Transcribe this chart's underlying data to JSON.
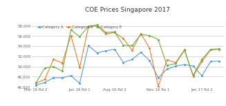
{
  "title": "COE Prices Singapore 2017",
  "background_color": "#ffffff",
  "grid_color": "#cccccc",
  "x_labels": [
    "Mar 16 Rd 2",
    "Jun 16 Rd 1",
    "Aug 16 Rd 2",
    "Nov 16 Ro 1",
    "Jan 17 Rd 2"
  ],
  "x_tick_positions": [
    0,
    5,
    9,
    14,
    19
  ],
  "ylim": [
    46000,
    58500
  ],
  "yticks": [
    46000,
    48000,
    50000,
    52000,
    54000,
    56000,
    58000
  ],
  "series": {
    "Category A": {
      "color": "#5b9bd5",
      "marker": "o",
      "values": [
        46300,
        46900,
        47800,
        47800,
        48200,
        46700,
        54100,
        52700,
        53100,
        53400,
        50800,
        51400,
        52800,
        51200,
        47800,
        49500,
        50100,
        50400,
        50100,
        48200,
        51000,
        51100
      ]
    },
    "Category B": {
      "color": "#ed7d31",
      "marker": "o",
      "values": [
        46700,
        47500,
        51400,
        50700,
        56100,
        49800,
        57800,
        58000,
        56400,
        56700,
        55500,
        53200,
        56500,
        53600,
        46100,
        51300,
        50800,
        53300,
        48100,
        51000,
        53300,
        53400
      ]
    },
    "Category E": {
      "color": "#70ad47",
      "marker": "o",
      "values": [
        46800,
        49700,
        50000,
        49100,
        57200,
        55900,
        57900,
        58200,
        56700,
        56800,
        54200,
        54100,
        56300,
        56100,
        55300,
        50200,
        50600,
        53200,
        48300,
        51400,
        53400,
        53500
      ]
    }
  },
  "legend": {
    "entries": [
      "Category A",
      "Category B",
      "Category E"
    ],
    "colors": [
      "#5b9bd5",
      "#ed7d31",
      "#70ad47"
    ]
  }
}
